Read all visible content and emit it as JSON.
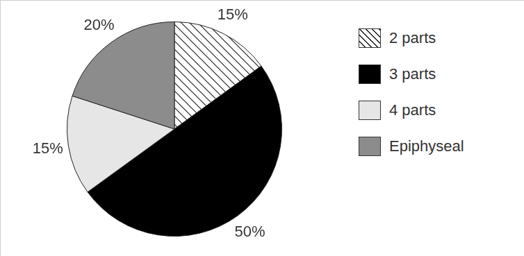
{
  "chart_data": {
    "type": "pie",
    "categories": [
      "2 parts",
      "3 parts",
      "4 parts",
      "Epiphyseal"
    ],
    "values": [
      15,
      50,
      15,
      20
    ],
    "value_labels": [
      "15%",
      "50%",
      "15%",
      "20%"
    ],
    "colors": [
      "#ffffff",
      "#000000",
      "#e6e6e6",
      "#8c8c8c"
    ],
    "data_labels": true,
    "legend": "right"
  }
}
